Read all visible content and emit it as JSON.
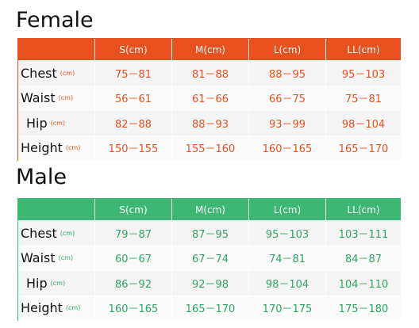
{
  "sections": [
    {
      "title": "Female",
      "header": [
        "S(cm)",
        "M(cm)",
        "L(cm)",
        "LL(cm)"
      ],
      "rows": [
        {
          "label": "Chest",
          "unit": "(cm)",
          "values": [
            "75－81",
            "81－88",
            "88－95",
            "95－103"
          ]
        },
        {
          "label": "Waist",
          "unit": "(cm)",
          "values": [
            "56－61",
            "61－66",
            "66－75",
            "75－81"
          ]
        },
        {
          "label": "Hip",
          "unit": "(cm)",
          "values": [
            "82－88",
            "88－93",
            "93－99",
            "98－104"
          ]
        },
        {
          "label": "Height",
          "unit": "(cm)",
          "values": [
            "150－155",
            "155－160",
            "160－165",
            "165－170"
          ]
        }
      ]
    },
    {
      "title": "Male",
      "header": [
        "S(cm)",
        "M(cm)",
        "L(cm)",
        "LL(cm)"
      ],
      "rows": [
        {
          "label": "Chest",
          "unit": "(cm)",
          "values": [
            "79－87",
            "87－95",
            "95－103",
            "103－111"
          ]
        },
        {
          "label": "Waist",
          "unit": "(cm)",
          "values": [
            "60－67",
            "67－74",
            "74－81",
            "84－87"
          ]
        },
        {
          "label": "Hip",
          "unit": "(cm)",
          "values": [
            "86－92",
            "92－98",
            "98－104",
            "104－110"
          ]
        },
        {
          "label": "Height",
          "unit": "(cm)",
          "values": [
            "160－165",
            "165－170",
            "170－175",
            "175－180"
          ]
        }
      ]
    }
  ]
}
